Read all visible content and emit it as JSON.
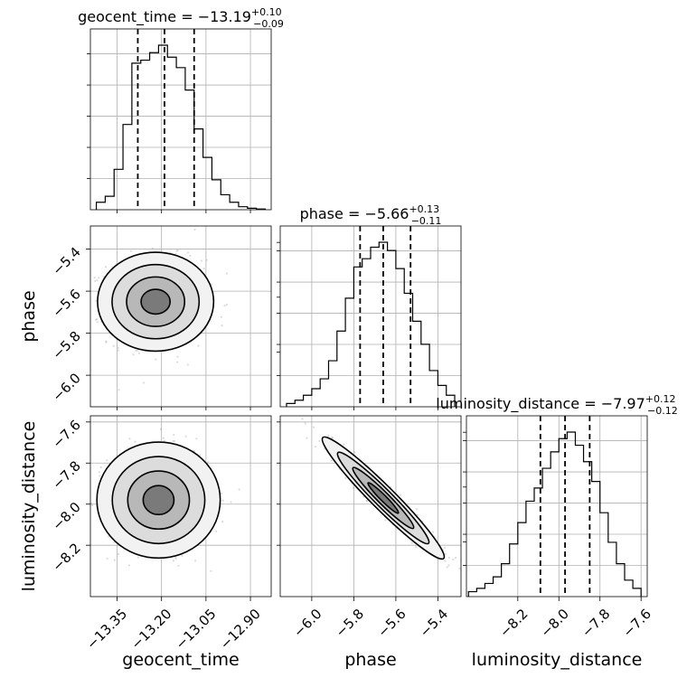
{
  "chart_data": {
    "type": "corner",
    "parameters": [
      "geocent_time",
      "phase",
      "luminosity_distance"
    ],
    "titles": {
      "geocent_time": {
        "name": "geocent_time",
        "median": "−13.19",
        "plus": "+0.10",
        "minus": "−0.09"
      },
      "phase": {
        "name": "phase",
        "median": "−5.66",
        "plus": "+0.13",
        "minus": "−0.11"
      },
      "luminosity_distance": {
        "name": "luminosity_distance",
        "median": "−7.97",
        "plus": "+0.12",
        "minus": "−0.12"
      }
    },
    "ranges": {
      "geocent_time": [
        -13.44,
        -12.83
      ],
      "phase": [
        -6.15,
        -5.29
      ],
      "luminosity_distance": [
        -8.45,
        -7.57
      ]
    },
    "ticks": {
      "geocent_time": [
        -13.35,
        -13.2,
        -13.05,
        -12.9
      ],
      "phase": [
        -6.0,
        -5.8,
        -5.6,
        -5.4
      ],
      "luminosity_distance": [
        -8.2,
        -8.0,
        -7.8,
        -7.6
      ]
    },
    "tick_labels": {
      "geocent_time": [
        "−13.35",
        "−13.20",
        "−13.05",
        "−12.90"
      ],
      "phase": [
        "−6.0",
        "−5.8",
        "−5.6",
        "−5.4"
      ],
      "luminosity_distance": [
        "−8.2",
        "−8.0",
        "−7.8",
        "−7.6"
      ]
    },
    "quantiles": {
      "geocent_time": [
        -13.28,
        -13.19,
        -13.09
      ],
      "phase": [
        -5.77,
        -5.66,
        -5.53
      ],
      "luminosity_distance": [
        -8.09,
        -7.97,
        -7.85
      ]
    },
    "histograms": {
      "geocent_time": {
        "edges": [
          -13.42,
          -13.39,
          -13.36,
          -13.33,
          -13.3,
          -13.27,
          -13.24,
          -13.21,
          -13.18,
          -13.15,
          -13.12,
          -13.09,
          -13.06,
          -13.03,
          -13.0,
          -12.97,
          -12.94,
          -12.91,
          -12.88,
          -12.85
        ],
        "counts": [
          0.05,
          0.09,
          0.27,
          0.57,
          0.98,
          1.0,
          1.05,
          1.1,
          1.02,
          0.95,
          0.8,
          0.54,
          0.35,
          0.2,
          0.1,
          0.05,
          0.02,
          0.01,
          0.005
        ]
      },
      "phase": {
        "edges": [
          -6.12,
          -6.08,
          -6.04,
          -6.0,
          -5.96,
          -5.92,
          -5.88,
          -5.84,
          -5.8,
          -5.76,
          -5.72,
          -5.68,
          -5.64,
          -5.6,
          -5.56,
          -5.52,
          -5.48,
          -5.44,
          -5.4,
          -5.36,
          -5.32
        ],
        "counts": [
          0.02,
          0.04,
          0.07,
          0.11,
          0.17,
          0.28,
          0.46,
          0.66,
          0.85,
          0.9,
          0.97,
          1.0,
          0.95,
          0.84,
          0.69,
          0.52,
          0.38,
          0.22,
          0.13,
          0.07
        ]
      },
      "luminosity_distance": {
        "edges": [
          -8.44,
          -8.4,
          -8.36,
          -8.32,
          -8.28,
          -8.24,
          -8.2,
          -8.16,
          -8.12,
          -8.08,
          -8.04,
          -8.0,
          -7.96,
          -7.92,
          -7.88,
          -7.84,
          -7.8,
          -7.76,
          -7.72,
          -7.68,
          -7.64,
          -7.6
        ],
        "counts": [
          0.03,
          0.05,
          0.08,
          0.12,
          0.2,
          0.32,
          0.45,
          0.58,
          0.66,
          0.78,
          0.88,
          0.96,
          1.0,
          0.92,
          0.82,
          0.7,
          0.51,
          0.33,
          0.2,
          0.1,
          0.05
        ]
      }
    },
    "density_2d": {
      "phase_vs_geocent_time": {
        "center": [
          -13.22,
          -5.65
        ],
        "sigma": [
          0.08,
          0.1
        ],
        "rho": 0.0,
        "contour_levels_sigma": [
          0.6,
          1.2,
          1.8,
          2.4
        ]
      },
      "luminosity_distance_vs_geocent_time": {
        "center": [
          -13.21,
          -7.98
        ],
        "sigma": [
          0.085,
          0.12
        ],
        "rho": 0.0,
        "contour_levels_sigma": [
          0.6,
          1.2,
          1.8,
          2.4
        ]
      },
      "luminosity_distance_vs_phase": {
        "center": [
          -5.66,
          -7.97
        ],
        "sigma": [
          0.12,
          0.12
        ],
        "rho": -0.96,
        "contour_levels_sigma": [
          0.6,
          1.2,
          1.8,
          2.4
        ]
      }
    },
    "grid": true
  }
}
